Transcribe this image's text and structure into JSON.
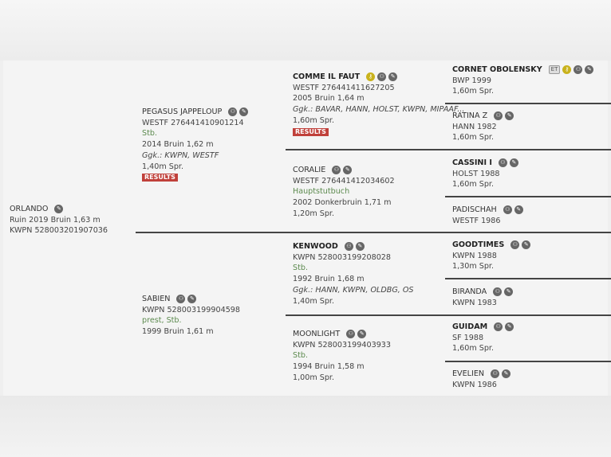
{
  "horses": [
    {
      "id": "orlando",
      "name": "ORLANDO",
      "bold": false,
      "icons": [
        "edit-icon"
      ],
      "lines": [
        {
          "t": "Ruin 2019 Bruin 1,63 m"
        },
        {
          "t": "KWPN 528003201907036"
        }
      ]
    },
    {
      "id": "pegasus-jappeloup",
      "name": "PEGASUS JAPPELOUP",
      "bold": false,
      "icons": [
        "pedigree-icon",
        "edit-icon"
      ],
      "lines": [
        {
          "t": "WESTF 276441410901214"
        },
        {
          "t": "Stb.",
          "s": "green"
        },
        {
          "t": "2014 Bruin 1,62 m"
        },
        {
          "t": "Ggk.: KWPN, WESTF",
          "s": "italic"
        },
        {
          "t": "1,40m Spr."
        }
      ],
      "results": "RESULTS"
    },
    {
      "id": "sabien",
      "name": "SABIEN",
      "bold": false,
      "icons": [
        "pedigree-icon",
        "edit-icon"
      ],
      "lines": [
        {
          "t": "KWPN 528003199904598"
        },
        {
          "t": "prest, Stb.",
          "s": "green"
        },
        {
          "t": "1999 Bruin 1,61 m"
        }
      ]
    },
    {
      "id": "comme-il-faut",
      "name": "COMME IL FAUT",
      "bold": true,
      "icons": [
        "key-icon",
        "pedigree-icon",
        "edit-icon"
      ],
      "lines": [
        {
          "t": "WESTF 276441411627205"
        },
        {
          "t": "2005 Bruin 1,64 m"
        },
        {
          "t": "Ggk.: BAVAR, HANN, HOLST, KWPN, MIPAAF...",
          "s": "italic"
        },
        {
          "t": "1,60m Spr."
        }
      ],
      "results": "RESULTS"
    },
    {
      "id": "coralie",
      "name": "CORALIE",
      "bold": false,
      "icons": [
        "pedigree-icon",
        "edit-icon"
      ],
      "lines": [
        {
          "t": "WESTF 276441412034602"
        },
        {
          "t": "Hauptstutbuch",
          "s": "green"
        },
        {
          "t": "2002 Donkerbruin 1,71 m"
        },
        {
          "t": "1,20m Spr."
        }
      ]
    },
    {
      "id": "kenwood",
      "name": "KENWOOD",
      "bold": true,
      "icons": [
        "pedigree-icon",
        "edit-icon"
      ],
      "lines": [
        {
          "t": "KWPN 528003199208028"
        },
        {
          "t": "Stb.",
          "s": "green"
        },
        {
          "t": "1992 Bruin 1,68 m"
        },
        {
          "t": "Ggk.: HANN, KWPN, OLDBG, OS",
          "s": "italic"
        },
        {
          "t": "1,40m Spr."
        }
      ]
    },
    {
      "id": "moonlight",
      "name": "MOONLIGHT",
      "bold": false,
      "icons": [
        "pedigree-icon",
        "edit-icon"
      ],
      "lines": [
        {
          "t": "KWPN 528003199403933"
        },
        {
          "t": "Stb.",
          "s": "green"
        },
        {
          "t": "1994 Bruin 1,58 m"
        },
        {
          "t": "1,00m Spr."
        }
      ]
    },
    {
      "id": "cornet-obolensky",
      "name": "CORNET OBOLENSKY",
      "bold": true,
      "badge": "ET",
      "icons": [
        "key-icon",
        "pedigree-icon",
        "edit-icon"
      ],
      "lines": [
        {
          "t": "BWP 1999"
        },
        {
          "t": "1,60m Spr."
        }
      ]
    },
    {
      "id": "ratina-z",
      "name": "RATINA Z",
      "bold": false,
      "icons": [
        "pedigree-icon",
        "edit-icon"
      ],
      "lines": [
        {
          "t": "HANN 1982"
        },
        {
          "t": "1,60m Spr."
        }
      ]
    },
    {
      "id": "cassini-i",
      "name": "CASSINI I",
      "bold": true,
      "icons": [
        "pedigree-icon",
        "edit-icon"
      ],
      "lines": [
        {
          "t": "HOLST 1988"
        },
        {
          "t": "1,60m Spr."
        }
      ]
    },
    {
      "id": "padischah",
      "name": "PADISCHAH",
      "bold": false,
      "icons": [
        "pedigree-icon",
        "edit-icon"
      ],
      "lines": [
        {
          "t": "WESTF 1986"
        }
      ]
    },
    {
      "id": "goodtimes",
      "name": "GOODTIMES",
      "bold": true,
      "icons": [
        "pedigree-icon",
        "edit-icon"
      ],
      "lines": [
        {
          "t": "KWPN 1988"
        },
        {
          "t": "1,30m Spr."
        }
      ]
    },
    {
      "id": "biranda",
      "name": "BIRANDA",
      "bold": false,
      "icons": [
        "pedigree-icon",
        "edit-icon"
      ],
      "lines": [
        {
          "t": "KWPN 1983"
        }
      ]
    },
    {
      "id": "guidam",
      "name": "GUIDAM",
      "bold": true,
      "icons": [
        "pedigree-icon",
        "edit-icon"
      ],
      "lines": [
        {
          "t": "SF 1988"
        },
        {
          "t": "1,60m Spr."
        }
      ]
    },
    {
      "id": "evelien",
      "name": "EVELIEN",
      "bold": false,
      "icons": [
        "pedigree-icon",
        "edit-icon"
      ],
      "lines": [
        {
          "t": "KWPN 1986"
        }
      ]
    }
  ],
  "colors": {
    "results_badge": "#c0403a",
    "stud_book_text": "#5c8a4e",
    "key_icon": "#c9b21c",
    "icon": "#666666"
  }
}
